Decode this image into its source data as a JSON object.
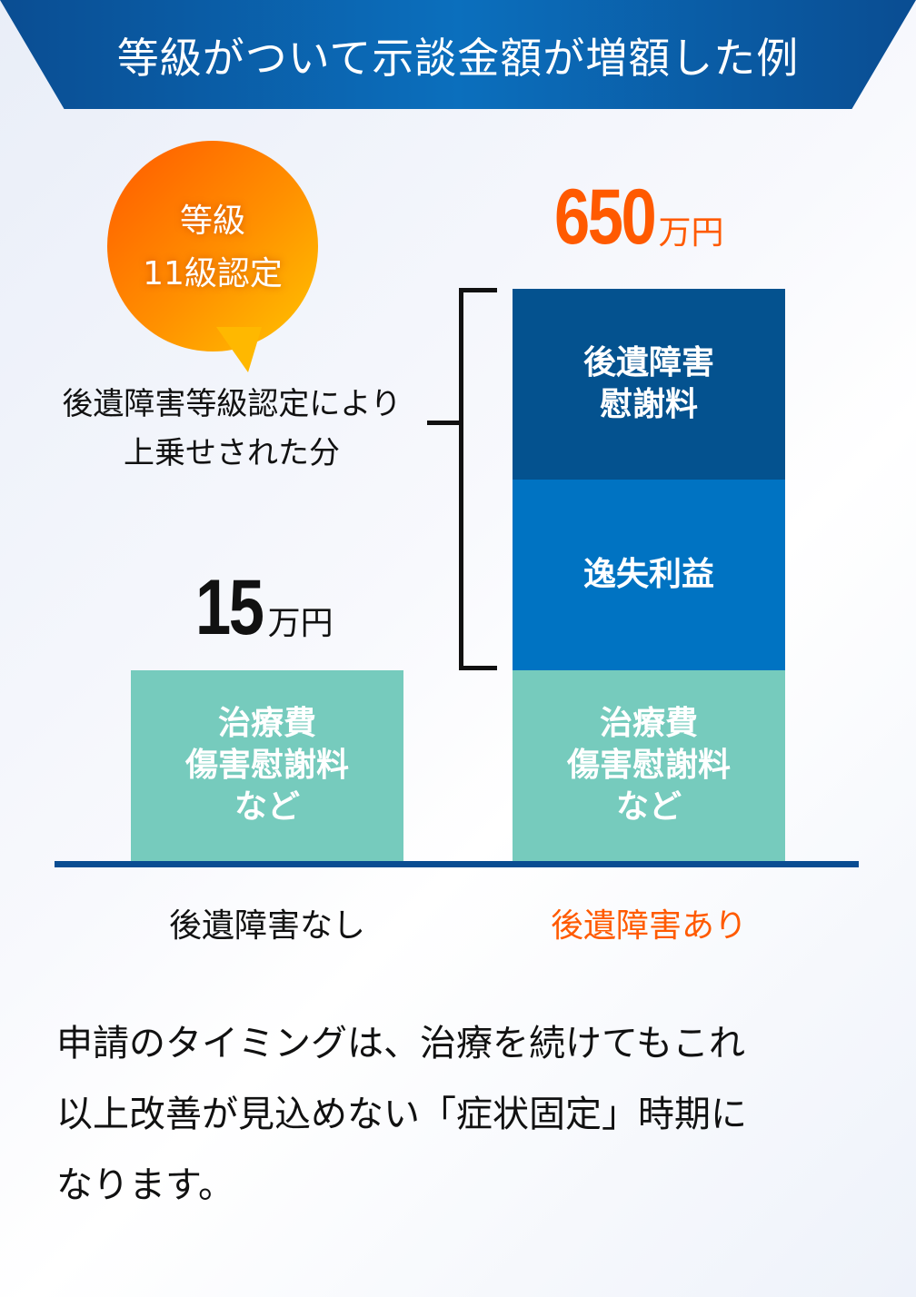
{
  "header": {
    "title": "等級がついて示談金額が増額した例"
  },
  "badge": {
    "line1": "等級",
    "line2": "11級認定"
  },
  "bracket_note": {
    "line1": "後遺障害等級認定により",
    "line2": "上乗せされた分"
  },
  "left_column": {
    "amount": "15",
    "unit": "万円",
    "segments": [
      {
        "lines": [
          "治療費",
          "傷害慰謝料",
          "など"
        ]
      }
    ],
    "label": "後遺障害なし"
  },
  "right_column": {
    "amount": "650",
    "unit": "万円",
    "segments": [
      {
        "lines": [
          "後遺障害",
          "慰謝料"
        ]
      },
      {
        "lines": [
          "逸失利益"
        ]
      },
      {
        "lines": [
          "治療費",
          "傷害慰謝料",
          "など"
        ]
      }
    ],
    "label": "後遺障害あり"
  },
  "description": {
    "lines": [
      "申請のタイミングは、治療を続けてもこれ",
      "以上改善が見込めない「症状固定」時期に",
      "なります。"
    ]
  },
  "colors": {
    "accent_orange": "#ff5a00",
    "navy": "#04528f",
    "blue": "#0073c2",
    "teal": "#76cbbd"
  }
}
